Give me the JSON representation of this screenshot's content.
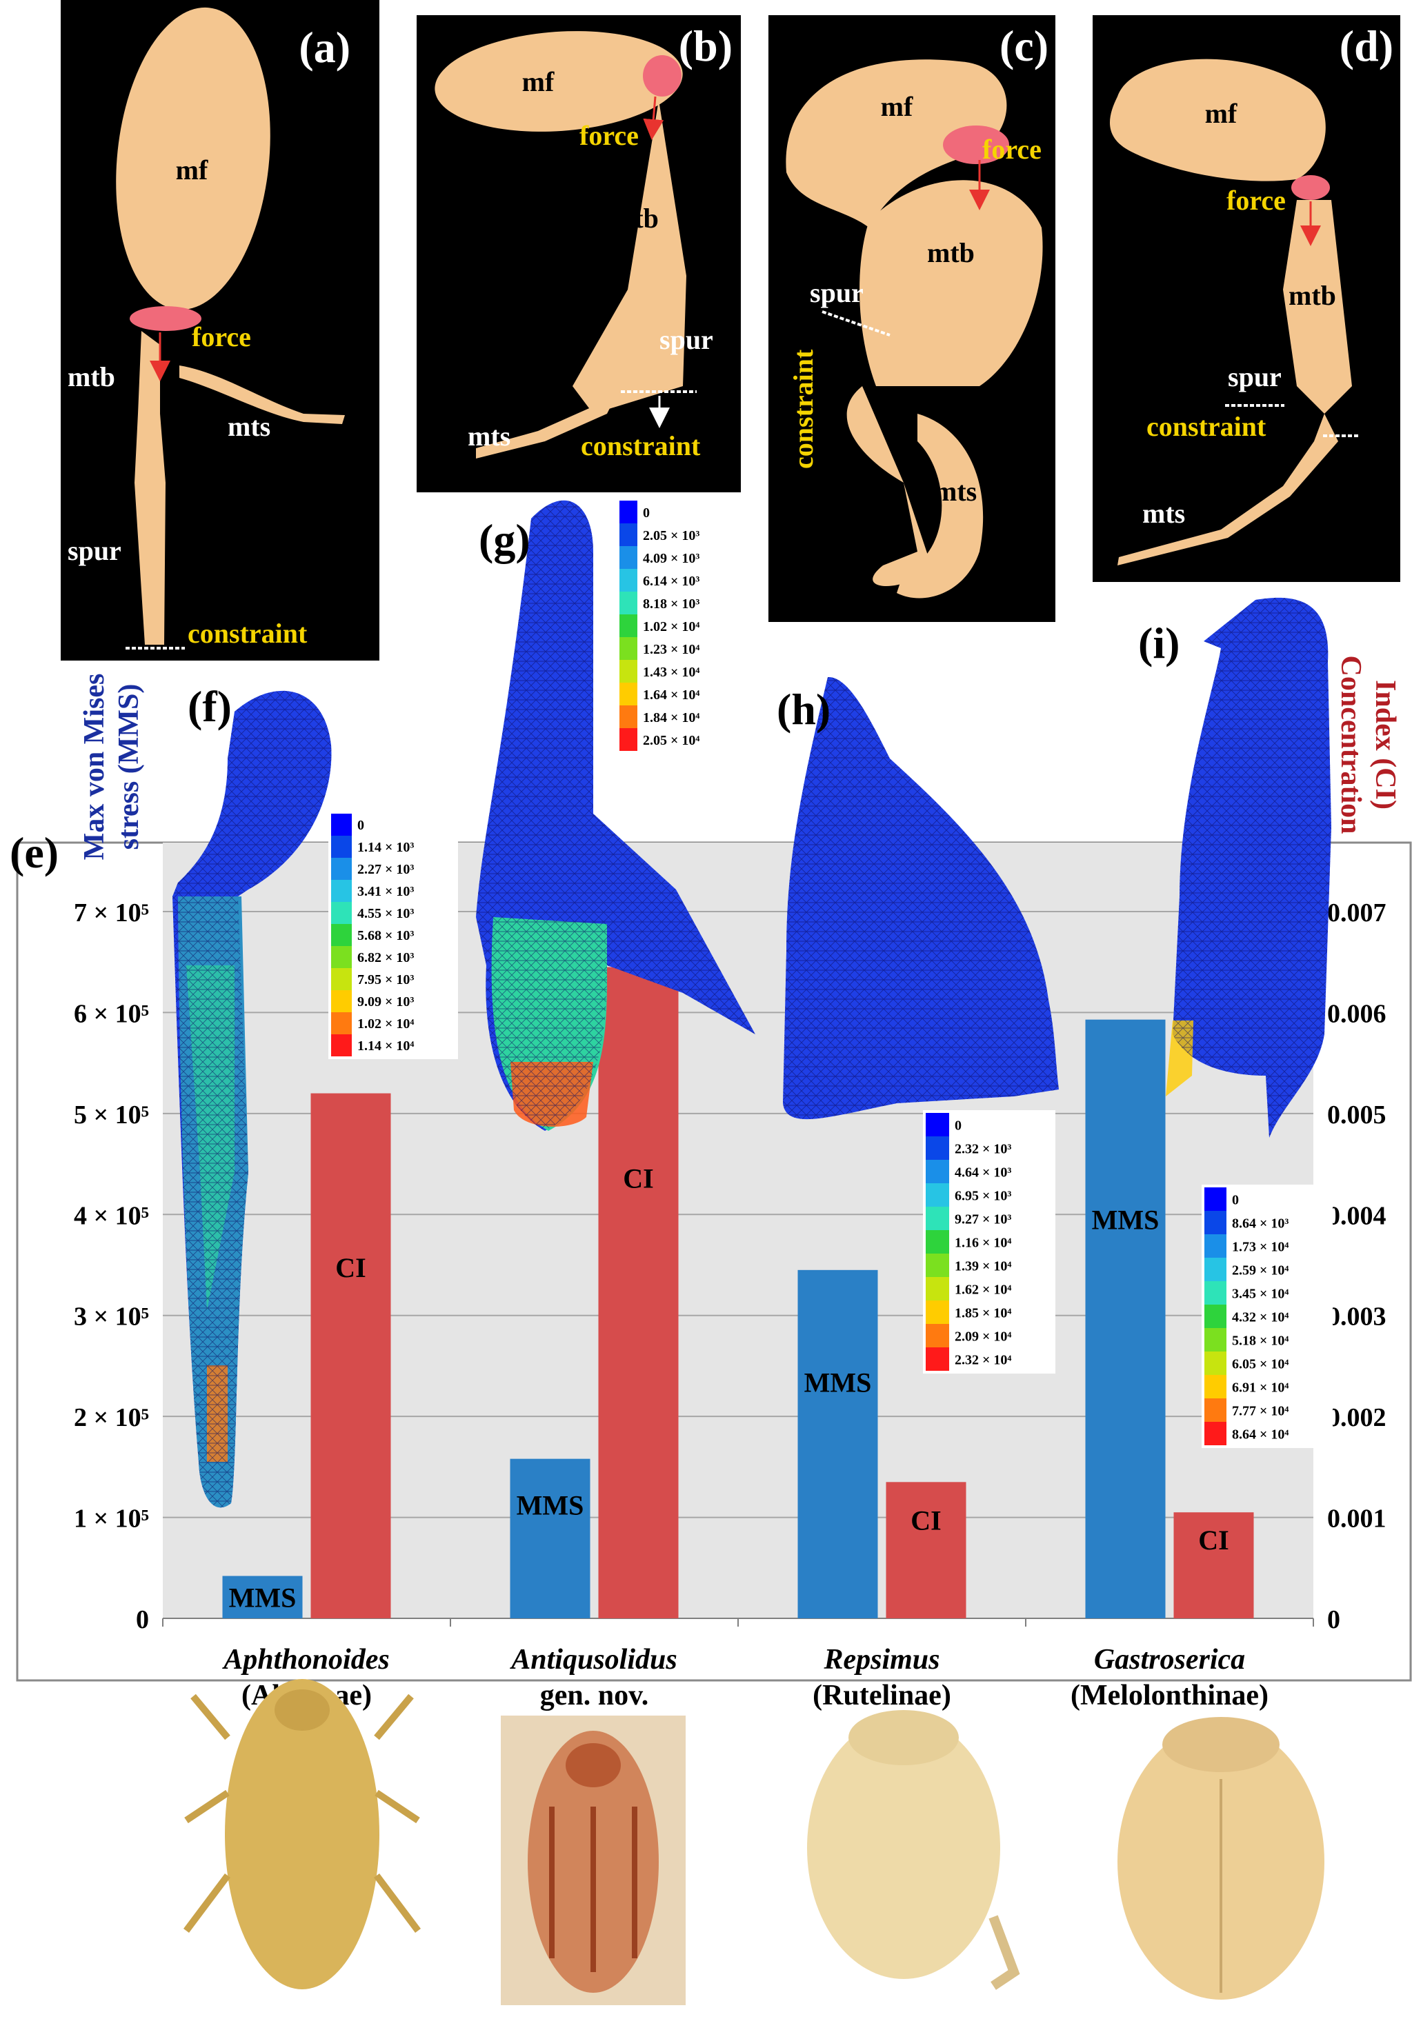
{
  "panels": {
    "a": {
      "letter": "(a)",
      "labels": {
        "mf": "mf",
        "force": "force",
        "mtb": "mtb",
        "mts": "mts",
        "spur": "spur",
        "constraint": "constraint"
      }
    },
    "b": {
      "letter": "(b)",
      "labels": {
        "mf": "mf",
        "force": "force",
        "mtb": "mtb",
        "spur": "spur",
        "mts": "mts",
        "constraint": "constraint"
      }
    },
    "c": {
      "letter": "(c)",
      "labels": {
        "mf": "mf",
        "force": "force",
        "mtb": "mtb",
        "spur": "spur",
        "mts": "mts",
        "constraint": "constraint"
      }
    },
    "d": {
      "letter": "(d)",
      "labels": {
        "mf": "mf",
        "force": "force",
        "mtb": "mtb",
        "spur": "spur",
        "constraint": "constraint",
        "mts": "mts"
      }
    },
    "e": {
      "letter": "(e)"
    },
    "f": {
      "letter": "(f)"
    },
    "g": {
      "letter": "(g)"
    },
    "h": {
      "letter": "(h)"
    },
    "i": {
      "letter": "(i)"
    }
  },
  "legends": {
    "f": [
      "0",
      "1.14 × 10³",
      "2.27 × 10³",
      "3.41 × 10³",
      "4.55 × 10³",
      "5.68 × 10³",
      "6.82 × 10³",
      "7.95 × 10³",
      "9.09 × 10³",
      "1.02 × 10⁴",
      "1.14 × 10⁴"
    ],
    "g": [
      "0",
      "2.05 × 10³",
      "4.09 × 10³",
      "6.14 × 10³",
      "8.18 × 10³",
      "1.02 × 10⁴",
      "1.23 × 10⁴",
      "1.43 × 10⁴",
      "1.64 × 10⁴",
      "1.84 × 10⁴",
      "2.05 × 10⁴"
    ],
    "h": [
      "0",
      "2.32 × 10³",
      "4.64 × 10³",
      "6.95 × 10³",
      "9.27 × 10³",
      "1.16 × 10⁴",
      "1.39 × 10⁴",
      "1.62 × 10⁴",
      "1.85 × 10⁴",
      "2.09 × 10⁴",
      "2.32 × 10⁴"
    ],
    "i": [
      "0",
      "8.64 × 10³",
      "1.73 × 10⁴",
      "2.59 × 10⁴",
      "3.45 × 10⁴",
      "4.32 × 10⁴",
      "5.18 × 10⁴",
      "6.05 × 10⁴",
      "6.91 × 10⁴",
      "7.77 × 10⁴",
      "8.64 × 10⁴"
    ],
    "colors": [
      "#0000ff",
      "#0a47e8",
      "#1a8fe8",
      "#27c4e4",
      "#2ee3b8",
      "#2ed33c",
      "#7be01f",
      "#c7e40f",
      "#ffcc00",
      "#ff7a10",
      "#ff1a1a"
    ]
  },
  "chart_data": {
    "type": "bar",
    "categories": [
      {
        "genus": "Aphthonoides",
        "group": "(Alticinae)"
      },
      {
        "genus": "Antiqusolidus",
        "group": "gen. nov."
      },
      {
        "genus": "Repsimus",
        "group": "(Rutelinae)"
      },
      {
        "genus": "Gastroserica",
        "group": "(Melolonthinae)"
      }
    ],
    "series": [
      {
        "name": "MMS",
        "axis": "left",
        "color": "#2a80c6",
        "values": [
          42000,
          158000,
          345000,
          593000
        ]
      },
      {
        "name": "CI",
        "axis": "right",
        "color": "#d64c4c",
        "values": [
          0.0052,
          0.00645,
          0.00135,
          0.00105
        ]
      }
    ],
    "y_left": {
      "label_line1": "Max von Mises",
      "label_line2": "stress (MMS)",
      "ylim": [
        0,
        700000
      ],
      "ticks": [
        0,
        100000,
        200000,
        300000,
        400000,
        500000,
        600000,
        700000
      ],
      "tick_labels": [
        "0",
        "1 × 10⁵",
        "2 × 10⁵",
        "3 × 10⁵",
        "4 × 10⁵",
        "5 × 10⁵",
        "6 × 10⁵",
        "7 × 10⁵"
      ]
    },
    "y_right": {
      "label_line1": "Concentration",
      "label_line2": "Index (CI)",
      "ylim": [
        0,
        0.007
      ],
      "ticks": [
        0,
        0.001,
        0.002,
        0.003,
        0.004,
        0.005,
        0.006,
        0.007
      ],
      "tick_labels": [
        "0",
        "0.001",
        "0.002",
        "0.003",
        "0.004",
        "0.005",
        "0.006",
        "0.007"
      ]
    },
    "grid": true,
    "background": "#e5e5e5"
  }
}
